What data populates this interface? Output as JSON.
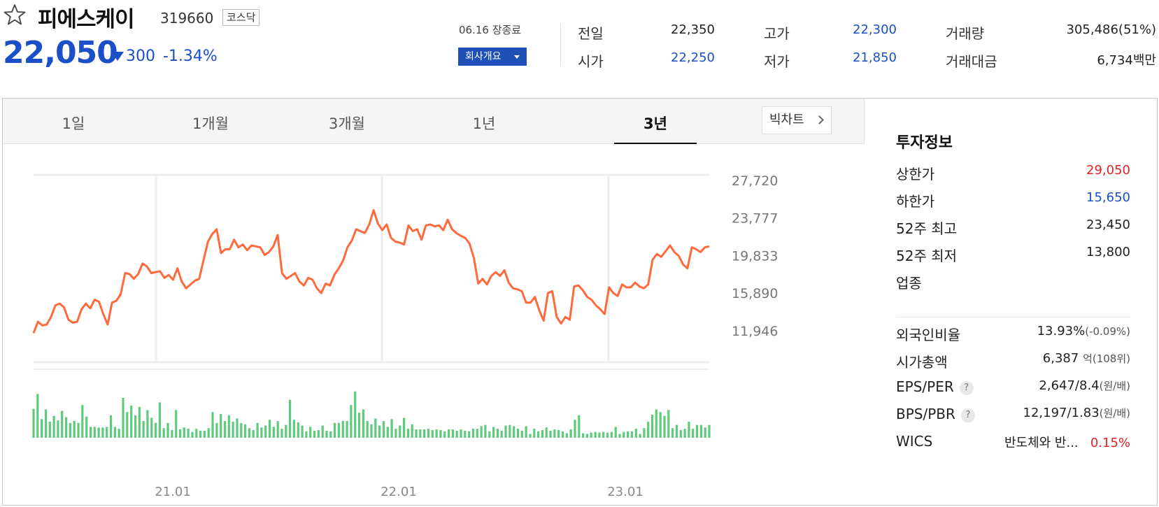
{
  "header": {
    "name": "피에스케이",
    "code": "319660",
    "market": "코스닥",
    "price": "22,050",
    "change_abs": "300",
    "change_pct": "-1.34%",
    "session": "06.16 장종료",
    "company_button": "회사개요"
  },
  "quote": {
    "prev_label": "전일",
    "prev": "22,350",
    "open_label": "시가",
    "open": "22,250",
    "high_label": "고가",
    "high": "22,300",
    "low_label": "저가",
    "low": "21,850",
    "volume_label": "거래량",
    "volume": "305,486(51%)",
    "value_label": "거래대금",
    "value": "6,734",
    "value_unit": "백만"
  },
  "tabs": [
    {
      "label": "1일"
    },
    {
      "label": "1개월"
    },
    {
      "label": "3개월"
    },
    {
      "label": "1년"
    },
    {
      "label": "3년"
    }
  ],
  "active_tab": "3년",
  "bigchart_label": "빅차트",
  "colors": {
    "accent_blue": "#1a4fc7",
    "up_red": "#e02424",
    "price_line": "#ff6a3d",
    "volume_bar": "#5ecb7c"
  },
  "chart_data": {
    "type": "line",
    "y_ticks": [
      "27,720",
      "23,777",
      "19,833",
      "15,890",
      "11,946"
    ],
    "y_tick_values": [
      27720,
      23777,
      19833,
      15890,
      11946
    ],
    "x_ticks": [
      "21.01",
      "22.01",
      "23.01"
    ],
    "ylim": [
      11946,
      27720
    ],
    "prices": [
      11700,
      12900,
      12500,
      12600,
      13400,
      14600,
      14800,
      14400,
      13100,
      12800,
      12900,
      14200,
      14800,
      14300,
      15200,
      15000,
      13700,
      12600,
      14900,
      15100,
      15800,
      18000,
      17900,
      17400,
      17900,
      19000,
      18700,
      18000,
      18100,
      18200,
      17500,
      17800,
      17300,
      18500,
      17100,
      16400,
      16800,
      17200,
      17400,
      19400,
      21300,
      22100,
      22600,
      20100,
      20500,
      20500,
      21500,
      20700,
      21000,
      20400,
      20900,
      20800,
      20700,
      19900,
      20200,
      20800,
      22000,
      18000,
      17400,
      17700,
      18000,
      17100,
      16700,
      17500,
      17300,
      16400,
      15900,
      16900,
      16700,
      17800,
      18500,
      19300,
      20700,
      21400,
      22600,
      22400,
      22200,
      23100,
      24600,
      23200,
      22500,
      23100,
      21700,
      21300,
      21200,
      21000,
      23000,
      22400,
      22600,
      21500,
      23000,
      23100,
      22900,
      23000,
      22500,
      23600,
      22600,
      22200,
      21900,
      21700,
      21100,
      19600,
      16900,
      17400,
      16800,
      17700,
      18100,
      17700,
      18300,
      17000,
      16400,
      16300,
      16100,
      14900,
      14900,
      15500,
      14100,
      13000,
      15900,
      16100,
      13400,
      12700,
      13400,
      13100,
      16600,
      16700,
      16200,
      15500,
      15200,
      14600,
      14200,
      13700,
      16500,
      15900,
      15600,
      16800,
      16500,
      16500,
      17000,
      16600,
      16400,
      16800,
      19400,
      20000,
      19700,
      20300,
      20900,
      20200,
      19800,
      18900,
      18500,
      20700,
      20500,
      20200,
      20700,
      20800
    ],
    "volumes": [
      0.45,
      0.68,
      0.29,
      0.44,
      0.25,
      0.34,
      0.27,
      0.42,
      0.32,
      0.23,
      0.26,
      0.23,
      0.51,
      0.33,
      0.17,
      0.17,
      0.16,
      0.16,
      0.17,
      0.35,
      0.17,
      0.14,
      0.62,
      0.4,
      0.5,
      0.35,
      0.48,
      0.26,
      0.43,
      0.31,
      0.23,
      0.55,
      0.15,
      0.23,
      0.12,
      0.43,
      0.13,
      0.16,
      0.14,
      0.09,
      0.14,
      0.11,
      0.11,
      0.15,
      0.4,
      0.23,
      0.37,
      0.26,
      0.35,
      0.25,
      0.3,
      0.23,
      0.21,
      0.15,
      0.12,
      0.23,
      0.16,
      0.19,
      0.28,
      0.17,
      0.26,
      0.14,
      0.2,
      0.59,
      0.28,
      0.24,
      0.19,
      0.1,
      0.17,
      0.11,
      0.12,
      0.19,
      0.11,
      0.1,
      0.23,
      0.23,
      0.26,
      0.26,
      0.51,
      0.72,
      0.39,
      0.44,
      0.26,
      0.21,
      0.3,
      0.19,
      0.26,
      0.17,
      0.29,
      0.14,
      0.19,
      0.31,
      0.14,
      0.21,
      0.13,
      0.13,
      0.13,
      0.14,
      0.12,
      0.13,
      0.12,
      0.1,
      0.13,
      0.13,
      0.11,
      0.13,
      0.11,
      0.1,
      0.14,
      0.14,
      0.18,
      0.2,
      0.1,
      0.17,
      0.14,
      0.11,
      0.19,
      0.2,
      0.18,
      0.14,
      0.11,
      0.18,
      0.06,
      0.14,
      0.1,
      0.12,
      0.16,
      0.11,
      0.13,
      0.12,
      0.1,
      0.07,
      0.13,
      0.28,
      0.35,
      0.07,
      0.06,
      0.08,
      0.09,
      0.08,
      0.09,
      0.08,
      0.09,
      0.17,
      0.06,
      0.09,
      0.1,
      0.1,
      0.14,
      0.06,
      0.15,
      0.25,
      0.36,
      0.44,
      0.4,
      0.34,
      0.43,
      0.15,
      0.2,
      0.12,
      0.14,
      0.25,
      0.14,
      0.2,
      0.2,
      0.16,
      0.2
    ]
  },
  "investment": {
    "title": "투자정보",
    "upper_limit_label": "상한가",
    "upper_limit": "29,050",
    "lower_limit_label": "하한가",
    "lower_limit": "15,650",
    "high52_label": "52주 최고",
    "high52": "23,450",
    "low52_label": "52주 최저",
    "low52": "13,800",
    "industry_label": "업종",
    "foreign_label": "외국인비율",
    "foreign": "13.93%",
    "foreign_change": "(-0.09%)",
    "mcap_label": "시가총액",
    "mcap": "6,387",
    "mcap_unit": "억(108위)",
    "eps_label": "EPS/PER",
    "eps": "2,647/8.4",
    "eps_unit": "(원/배)",
    "bps_label": "BPS/PBR",
    "bps": "12,197/1.83",
    "bps_unit": "(원/배)",
    "help_icon": "?",
    "wics_label": "WICS",
    "wics": "반도체와 반...",
    "wics_change": "0.15%"
  }
}
